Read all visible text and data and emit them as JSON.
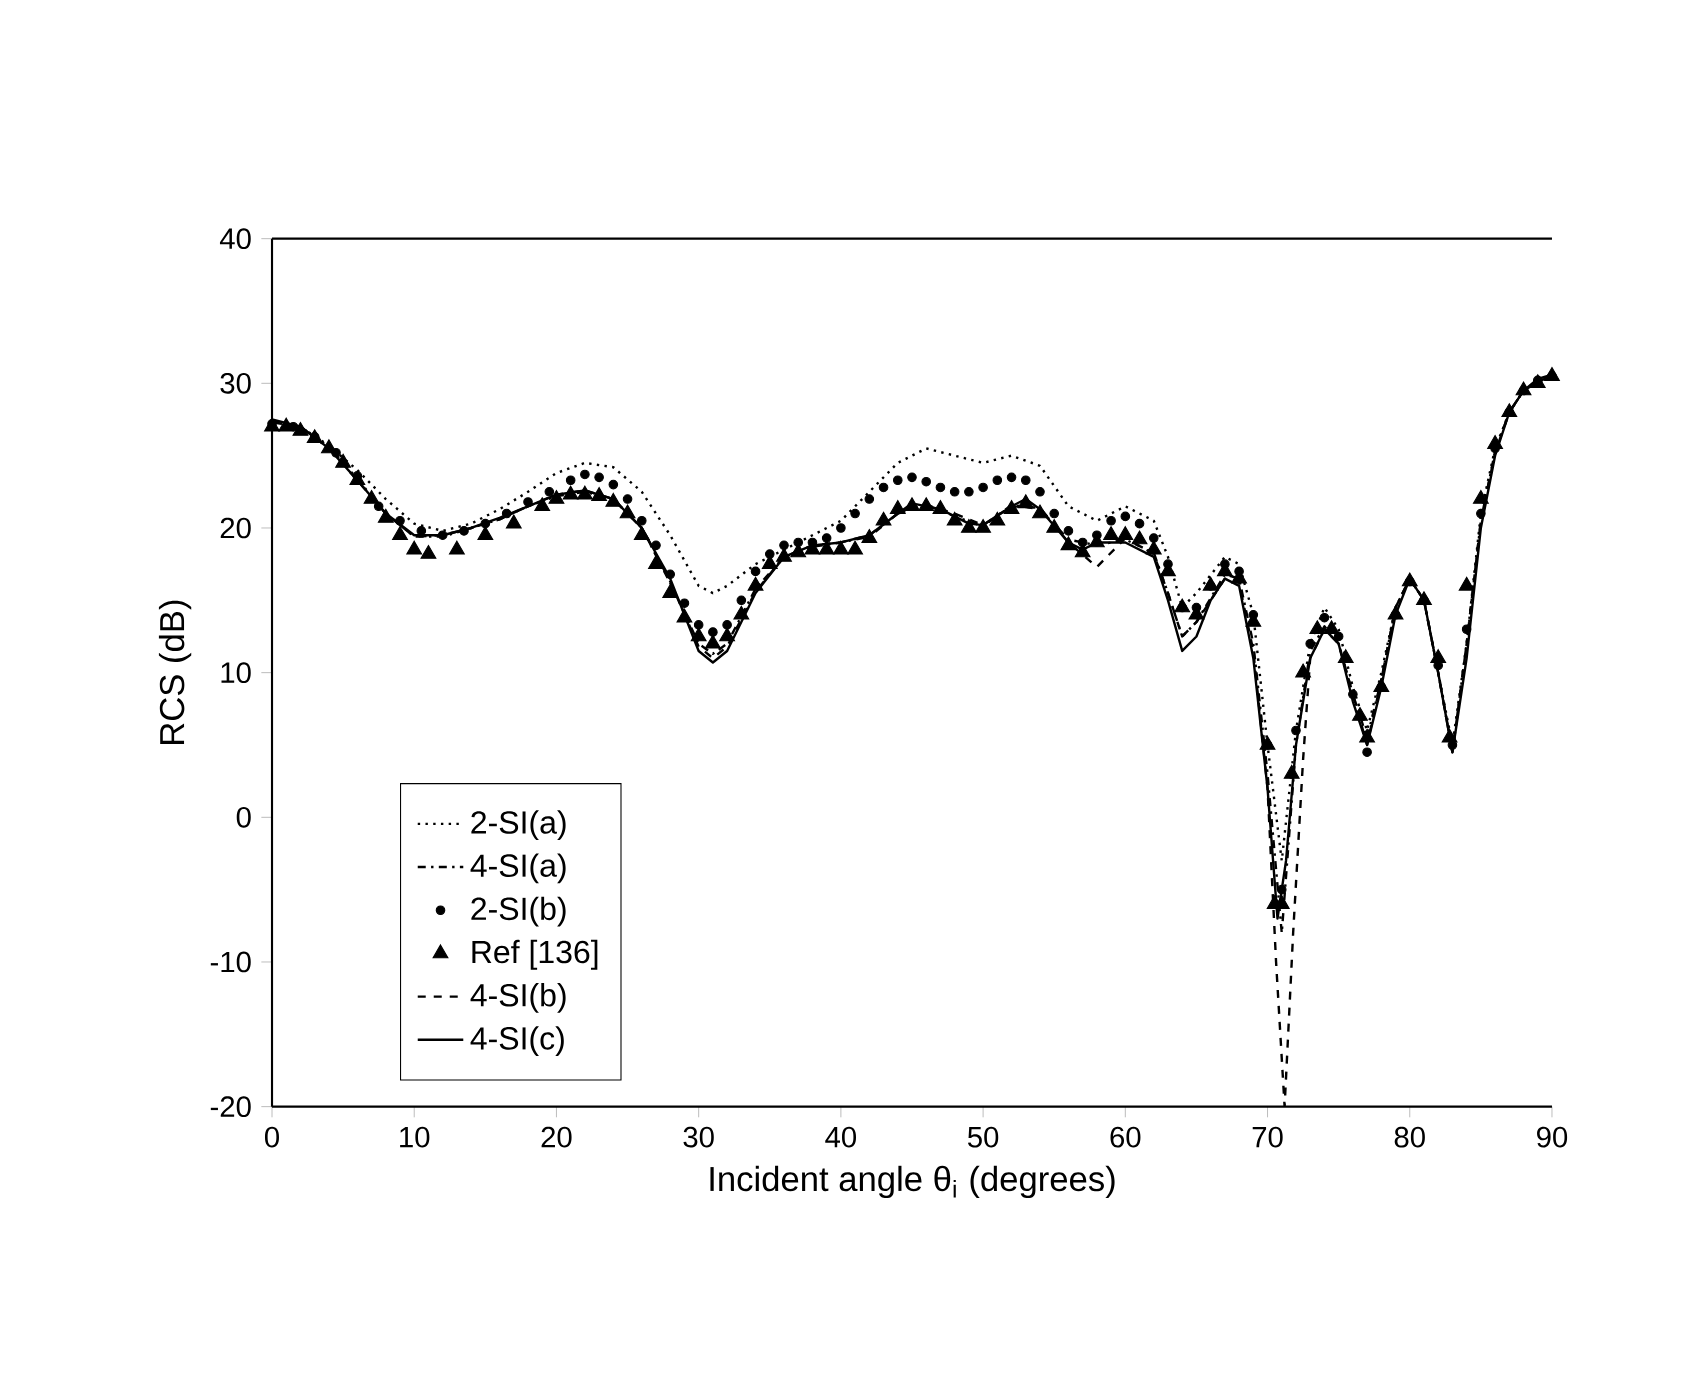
{
  "chart_data": {
    "type": "line",
    "xlabel": "Incident angle θ$_{i}$ (degrees)",
    "ylabel": "RCS (dB)",
    "xlim": [
      0,
      90
    ],
    "ylim": [
      -20,
      40
    ],
    "xticks": [
      0,
      10,
      20,
      30,
      40,
      50,
      60,
      70,
      80,
      90
    ],
    "yticks": [
      -20,
      -10,
      0,
      10,
      20,
      30,
      40
    ],
    "grid": false,
    "legend": "bottom left",
    "series": [
      {
        "name": "2-SI(a)",
        "line_style": "dotted",
        "marker": "none",
        "color": "#000000",
        "x": [
          0,
          2,
          4,
          6,
          8,
          10,
          12,
          14,
          16,
          18,
          20,
          22,
          24,
          26,
          28,
          30,
          31,
          32,
          34,
          36,
          38,
          40,
          42,
          44,
          46,
          48,
          50,
          52,
          54,
          56,
          58,
          60,
          62,
          63,
          64,
          65,
          67,
          68,
          69,
          70,
          71,
          72,
          73,
          74,
          75,
          76,
          77,
          78,
          79,
          80,
          81,
          82,
          83,
          84,
          85,
          86,
          87,
          88,
          90
        ],
        "values": [
          27.3,
          27,
          25.7,
          24,
          22,
          20.3,
          19.8,
          20.3,
          21.3,
          22.5,
          23.8,
          24.5,
          24.2,
          22.5,
          19.5,
          16,
          15.5,
          16,
          17.5,
          18.5,
          19.5,
          20.5,
          22.5,
          24.5,
          25.5,
          25,
          24.5,
          25,
          24.3,
          21.5,
          20.5,
          21.5,
          20.5,
          18,
          14.5,
          15.5,
          18,
          17.5,
          14,
          5,
          -3,
          6,
          12,
          14.5,
          13,
          9,
          6,
          10,
          14.5,
          16.5,
          15,
          10,
          5,
          12,
          21,
          25.5,
          28,
          29.5,
          30.6
        ]
      },
      {
        "name": "4-SI(a)",
        "line_style": "dashdot",
        "marker": "none",
        "color": "#000000",
        "x": [
          0,
          2,
          4,
          6,
          8,
          10,
          12,
          14,
          16,
          18,
          20,
          22,
          24,
          26,
          28,
          30,
          31,
          32,
          34,
          36,
          38,
          40,
          42,
          44,
          46,
          48,
          50,
          52,
          54,
          56,
          58,
          60,
          62,
          63,
          64,
          65,
          67,
          68,
          69,
          70,
          71,
          72,
          73,
          74,
          75,
          76,
          77,
          78,
          79,
          80,
          81,
          82,
          83,
          84,
          85,
          86,
          87,
          88,
          90
        ],
        "values": [
          27.4,
          27,
          25.6,
          23.4,
          21,
          19.4,
          19.4,
          20,
          20.6,
          21.5,
          22.2,
          22.5,
          22,
          20,
          16.2,
          12,
          11.3,
          12,
          15.8,
          18,
          18.7,
          19,
          19.4,
          21,
          21.6,
          20.8,
          20.1,
          21.6,
          21.3,
          19.2,
          18.8,
          19.2,
          18.3,
          15.5,
          12.5,
          13.5,
          16.8,
          16.5,
          12,
          3,
          -8,
          5,
          11.5,
          13.2,
          12,
          8.5,
          5.5,
          9.5,
          14.5,
          16.5,
          15,
          10,
          4.5,
          12,
          20.5,
          25.3,
          28,
          29.5,
          30.6
        ]
      },
      {
        "name": "2-SI(b)",
        "type": "scatter",
        "marker": "circle",
        "color": "#000000",
        "x": [
          0,
          1.5,
          3,
          4.5,
          6,
          7.5,
          9,
          10.5,
          12,
          13.5,
          15,
          16.5,
          18,
          19.5,
          21,
          22,
          23,
          24,
          25,
          26,
          27,
          28,
          29,
          30,
          31,
          32,
          33,
          34,
          35,
          36,
          37,
          38,
          39,
          40,
          41,
          42,
          43,
          44,
          45,
          46,
          47,
          48,
          49,
          50,
          51,
          52,
          53,
          54,
          55,
          56,
          57,
          58,
          59,
          60,
          61,
          62,
          63,
          64,
          65,
          66,
          67,
          68,
          69,
          70,
          71,
          72,
          73,
          74,
          75,
          76,
          77,
          78,
          79,
          80,
          81,
          82,
          83,
          84,
          85,
          86,
          87,
          88,
          89,
          90
        ],
        "values": [
          27.2,
          27,
          26.3,
          25.2,
          23.6,
          21.5,
          20.5,
          19.8,
          19.5,
          19.8,
          20.3,
          21,
          21.8,
          22.5,
          23.3,
          23.7,
          23.5,
          23,
          22,
          20.5,
          18.8,
          16.8,
          14.8,
          13.3,
          12.8,
          13.3,
          15,
          17,
          18.2,
          18.8,
          19,
          19,
          19.3,
          20,
          21,
          22,
          22.8,
          23.3,
          23.5,
          23.2,
          22.8,
          22.5,
          22.5,
          22.8,
          23.3,
          23.5,
          23.3,
          22.5,
          21,
          19.8,
          19,
          19.5,
          20.5,
          20.8,
          20.3,
          19.3,
          17.5,
          14.5,
          14.5,
          16,
          17.5,
          17,
          14,
          5,
          -5,
          6,
          12,
          13.8,
          12.5,
          8.5,
          4.5,
          9,
          14,
          16.3,
          15,
          10.5,
          5,
          13,
          21,
          25.5,
          28,
          29.5,
          30.2,
          30.5
        ]
      },
      {
        "name": "Ref [136]",
        "type": "scatter",
        "marker": "triangle",
        "color": "#000000",
        "x": [
          0,
          1,
          2,
          3,
          4,
          5,
          6,
          7,
          8,
          9,
          10,
          11,
          13,
          15,
          17,
          19,
          20,
          21,
          22,
          23,
          24,
          25,
          26,
          27,
          28,
          29,
          30,
          31,
          32,
          33,
          34,
          35,
          36,
          37,
          38,
          39,
          40,
          41,
          42,
          43,
          44,
          45,
          46,
          47,
          48,
          49,
          50,
          51,
          52,
          53,
          54,
          55,
          56,
          57,
          58,
          59,
          60,
          61,
          62,
          63,
          64,
          65,
          66,
          67,
          68,
          69,
          70,
          70.5,
          71,
          71.7,
          72.5,
          73.5,
          74.5,
          75.5,
          76.5,
          77,
          78,
          79,
          80,
          81,
          82,
          82.8,
          84,
          85,
          86,
          87,
          88,
          89,
          90
        ],
        "values": [
          27,
          27,
          26.7,
          26.2,
          25.5,
          24.5,
          23.3,
          22,
          20.7,
          19.5,
          18.5,
          18.2,
          18.5,
          19.5,
          20.3,
          21.5,
          22,
          22.3,
          22.3,
          22.2,
          21.8,
          21,
          19.5,
          17.5,
          15.5,
          13.8,
          12.5,
          12,
          12.5,
          14,
          16,
          17.5,
          18,
          18.3,
          18.5,
          18.5,
          18.5,
          18.5,
          19.3,
          20.5,
          21.3,
          21.5,
          21.5,
          21.3,
          20.5,
          20,
          20,
          20.5,
          21.3,
          21.7,
          21,
          20,
          18.8,
          18.3,
          19,
          19.5,
          19.5,
          19.2,
          18.5,
          17,
          14.5,
          14,
          16,
          17,
          16.5,
          13.5,
          5,
          -6,
          -6,
          3,
          10,
          13,
          13,
          11,
          7,
          5.5,
          9,
          14,
          16.3,
          15,
          11,
          5.5,
          16,
          22,
          25.8,
          28,
          29.5,
          30,
          30.5
        ]
      },
      {
        "name": "4-SI(b)",
        "line_style": "dashed",
        "marker": "none",
        "color": "#000000",
        "x": [
          0,
          2,
          4,
          6,
          8,
          10,
          12,
          14,
          16,
          18,
          20,
          22,
          24,
          26,
          28,
          30,
          31,
          32,
          34,
          36,
          38,
          40,
          42,
          44,
          46,
          48,
          50,
          52,
          54,
          56,
          58,
          60,
          62,
          63,
          64,
          65,
          67,
          68,
          69,
          70,
          70.6,
          71.2,
          71.8,
          72.5,
          73,
          74,
          75,
          76,
          77,
          78,
          79,
          80,
          81,
          82,
          83,
          84,
          85,
          86,
          87,
          88,
          90
        ],
        "values": [
          27.3,
          27,
          25.5,
          23.3,
          21,
          19.4,
          19.5,
          20,
          20.6,
          21.5,
          22.3,
          22.6,
          22,
          20,
          16.3,
          11.8,
          11,
          11.8,
          15.6,
          18,
          18.8,
          19,
          19.5,
          21,
          21.6,
          21,
          20.2,
          21.5,
          21.4,
          19,
          17.3,
          19.3,
          18.2,
          15.5,
          12.5,
          13.5,
          16.5,
          16.2,
          11.5,
          2,
          -10,
          -20,
          -8,
          4,
          11,
          13,
          12,
          8.5,
          5,
          9.5,
          14.5,
          16.5,
          15,
          10,
          4.5,
          12,
          20.5,
          25.2,
          28,
          29.5,
          30.6
        ]
      },
      {
        "name": "4-SI(c)",
        "line_style": "solid",
        "marker": "none",
        "color": "#000000",
        "x": [
          0,
          2,
          4,
          6,
          8,
          10,
          12,
          14,
          16,
          18,
          20,
          22,
          24,
          26,
          28,
          29,
          30,
          31,
          32,
          33,
          34,
          36,
          38,
          40,
          42,
          44,
          45,
          47,
          49,
          50,
          52,
          53,
          54,
          56,
          57,
          58,
          60,
          62,
          63,
          64,
          65,
          66,
          67,
          68,
          69,
          70,
          70.7,
          71.3,
          72,
          73,
          74,
          75,
          76,
          77,
          78,
          79,
          80,
          81,
          82,
          83,
          84,
          85,
          86,
          87,
          88,
          89,
          90
        ],
        "values": [
          27.5,
          27,
          25.5,
          23.3,
          21,
          19.5,
          19.5,
          20,
          20.7,
          21.5,
          22.3,
          22.6,
          22,
          20,
          16.5,
          14,
          11.5,
          10.7,
          11.5,
          13.5,
          15.5,
          18,
          18.8,
          19,
          19.5,
          21,
          21.7,
          21.3,
          20.3,
          20.2,
          21.5,
          22,
          21.3,
          19,
          18.5,
          19,
          19,
          18,
          15,
          11.5,
          12.5,
          15,
          16.5,
          16,
          11,
          2,
          -7,
          -3,
          5,
          11,
          13,
          12,
          8,
          5,
          9,
          14,
          16.5,
          15,
          10,
          4.5,
          11,
          20,
          25,
          28,
          29.5,
          30.3,
          30.6
        ]
      }
    ]
  }
}
